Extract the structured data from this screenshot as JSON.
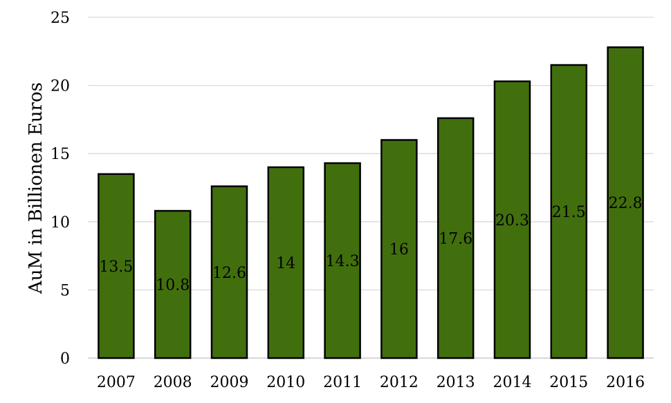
{
  "chart_data": {
    "type": "bar",
    "categories": [
      "2007",
      "2008",
      "2009",
      "2010",
      "2011",
      "2012",
      "2013",
      "2014",
      "2015",
      "2016"
    ],
    "values": [
      13.5,
      10.8,
      12.6,
      14,
      14.3,
      16,
      17.6,
      20.3,
      21.5,
      22.8
    ],
    "data_labels": [
      "13.5",
      "10.8",
      "12.6",
      "14",
      "14.3",
      "16",
      "17.6",
      "20.3",
      "21.5",
      "22.8"
    ],
    "title": "",
    "xlabel": "",
    "ylabel": "AuM in Billionen Euros",
    "ylim": [
      0,
      25
    ],
    "yticks": [
      "0",
      "5",
      "10",
      "15",
      "20",
      "25"
    ],
    "grid": true,
    "legend": "none",
    "bar_color": "#426f0e",
    "bar_border_color": "#000000"
  }
}
